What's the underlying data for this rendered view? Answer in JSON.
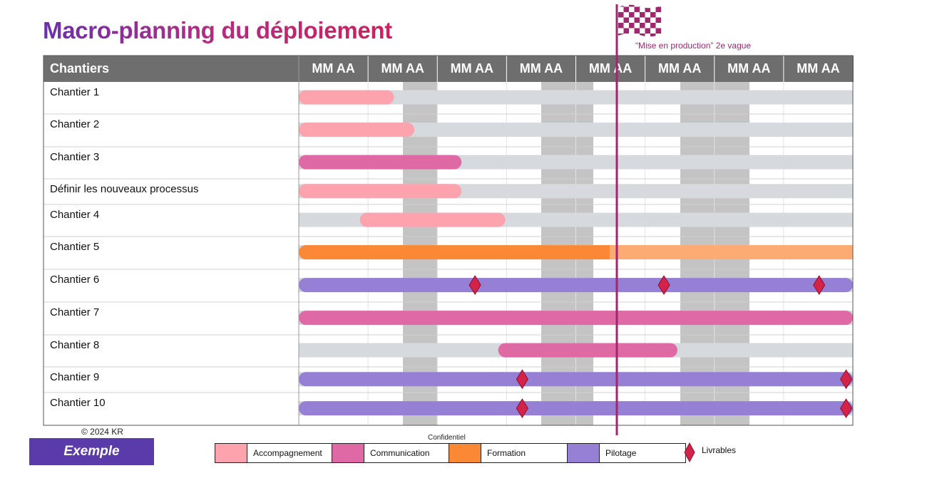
{
  "title": "Macro-planning du déploiement",
  "header": {
    "first_col": "Chantiers",
    "periods": [
      "MM AA",
      "MM AA",
      "MM AA",
      "MM AA",
      "MM AA",
      "MM AA",
      "MM AA",
      "MM AA"
    ]
  },
  "milestone": {
    "label": "“Mise en production” 2e vague",
    "color": "#a0266e"
  },
  "colors": {
    "Accompagnement": "#fca3ae",
    "Communication": "#de69a4",
    "Formation": "#fb8834",
    "Formation_light": "#fcab72",
    "Pilotage": "#9580d6",
    "background_track": "#d6d9dd",
    "livrable": "#d42349",
    "header_bg": "#6e6e6e"
  },
  "rows": [
    {
      "label": "Chantier 1",
      "bars": [
        {
          "type": "Accompagnement",
          "start": 0,
          "end": 1.2
        }
      ]
    },
    {
      "label": "Chantier 2",
      "bars": [
        {
          "type": "Accompagnement",
          "start": 0,
          "end": 1.5
        }
      ]
    },
    {
      "label": "Chantier 3",
      "bars": [
        {
          "type": "Communication",
          "start": 0,
          "end": 2.2
        }
      ]
    },
    {
      "label": "Définir les nouveaux processus",
      "bars": [
        {
          "type": "Accompagnement",
          "start": 0,
          "end": 2.2
        }
      ]
    },
    {
      "label": "Chantier 4",
      "bars": [
        {
          "type": "Accompagnement",
          "start": 0.8,
          "end": 2.85
        }
      ]
    },
    {
      "label": "Chantier 5",
      "bars": [
        {
          "type": "Formation",
          "start": 0,
          "end": 4.5
        },
        {
          "type": "Formation_light",
          "start": 4.5,
          "end": 8
        }
      ]
    },
    {
      "label": "Chantier 6",
      "bars": [
        {
          "type": "Pilotage",
          "start": 0,
          "end": 8
        }
      ],
      "livrables": [
        2.4,
        5.2,
        7.5
      ]
    },
    {
      "label": "Chantier 7",
      "bars": [
        {
          "type": "Communication",
          "start": 0,
          "end": 8
        }
      ]
    },
    {
      "label": "Chantier 8",
      "bars": [
        {
          "type": "Communication",
          "start": 2.85,
          "end": 5.4
        }
      ]
    },
    {
      "label": "Chantier 9",
      "bars": [
        {
          "type": "Pilotage",
          "start": 0,
          "end": 8
        }
      ],
      "livrables": [
        3.1,
        7.9
      ]
    },
    {
      "label": "Chantier 10",
      "bars": [
        {
          "type": "Pilotage",
          "start": 0,
          "end": 8
        }
      ],
      "livrables": [
        3.1,
        7.9
      ]
    }
  ],
  "milestone_at": 4.5,
  "footer": {
    "copyright": "© 2024 KR",
    "confidential": "Confidentiel",
    "badge": "Exemple"
  },
  "legend": [
    {
      "name": "Accompagnement",
      "color": "#fca3ae"
    },
    {
      "name": "Communication",
      "color": "#de69a4"
    },
    {
      "name": "Formation",
      "color": "#fb8834"
    },
    {
      "name": "Pilotage",
      "color": "#9580d6"
    }
  ],
  "legend_livrables": "Livrables"
}
